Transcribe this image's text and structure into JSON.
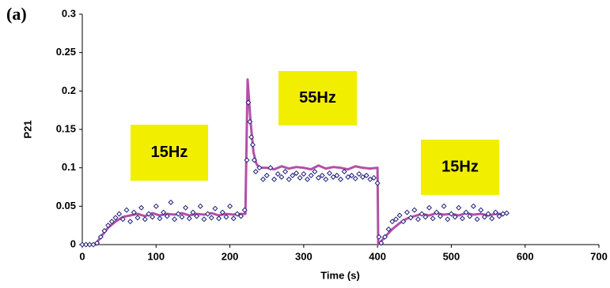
{
  "chart_data": {
    "type": "scatter",
    "label": "(a)",
    "xlabel": "Time (s)",
    "ylabel": "P21",
    "xlim": [
      0,
      700
    ],
    "xticks": [
      0,
      100,
      200,
      300,
      400,
      500,
      600,
      700
    ],
    "ylim": [
      0,
      0.3
    ],
    "yticks": [
      0,
      0.05,
      0.1,
      0.15,
      0.2,
      0.25,
      0.3
    ],
    "annotations": [
      "15Hz",
      "55Hz",
      "15Hz"
    ],
    "annotation_color": "#f2ee00",
    "series": [
      {
        "color": "#b44fa8",
        "mode": "line",
        "x": [
          0,
          18,
          25,
          35,
          45,
          55,
          65,
          75,
          85,
          95,
          105,
          115,
          125,
          135,
          145,
          155,
          165,
          175,
          185,
          195,
          205,
          215,
          221,
          224,
          228,
          232,
          236,
          240,
          250,
          260,
          270,
          280,
          290,
          300,
          310,
          320,
          330,
          340,
          350,
          360,
          370,
          380,
          390,
          400,
          401,
          403,
          410,
          420,
          430,
          440,
          450,
          460,
          470,
          480,
          490,
          500,
          510,
          520,
          530,
          540,
          550,
          560,
          570
        ],
        "values": [
          0,
          0,
          0.01,
          0.022,
          0.03,
          0.036,
          0.038,
          0.04,
          0.037,
          0.041,
          0.038,
          0.04,
          0.039,
          0.041,
          0.038,
          0.04,
          0.039,
          0.041,
          0.038,
          0.04,
          0.039,
          0.04,
          0.04,
          0.215,
          0.16,
          0.12,
          0.105,
          0.1,
          0.1,
          0.098,
          0.102,
          0.099,
          0.101,
          0.1,
          0.098,
          0.103,
          0.099,
          0.101,
          0.1,
          0.098,
          0.102,
          0.1,
          0.099,
          0.1,
          0,
          0.002,
          0.01,
          0.02,
          0.028,
          0.034,
          0.037,
          0.04,
          0.038,
          0.041,
          0.039,
          0.04,
          0.038,
          0.041,
          0.039,
          0.04,
          0.038,
          0.04,
          0.04
        ]
      },
      {
        "color": "#1f1f7a",
        "mode": "marker",
        "x": [
          0,
          5,
          10,
          15,
          20,
          25,
          30,
          35,
          40,
          45,
          50,
          55,
          60,
          65,
          70,
          75,
          80,
          85,
          90,
          95,
          100,
          105,
          110,
          115,
          120,
          125,
          130,
          135,
          140,
          145,
          150,
          155,
          160,
          165,
          170,
          175,
          180,
          185,
          190,
          195,
          200,
          205,
          210,
          215,
          220,
          223,
          225,
          227,
          229,
          231,
          233,
          235,
          240,
          245,
          250,
          255,
          260,
          265,
          270,
          275,
          280,
          285,
          290,
          295,
          300,
          305,
          310,
          315,
          320,
          325,
          330,
          335,
          340,
          345,
          350,
          355,
          360,
          365,
          370,
          375,
          380,
          385,
          390,
          395,
          400,
          402,
          405,
          410,
          415,
          420,
          425,
          430,
          435,
          440,
          445,
          450,
          455,
          460,
          465,
          470,
          475,
          480,
          485,
          490,
          495,
          500,
          505,
          510,
          515,
          520,
          525,
          530,
          535,
          540,
          545,
          550,
          555,
          560,
          565,
          570,
          575
        ],
        "values": [
          0,
          0,
          0,
          0,
          0.002,
          0.01,
          0.018,
          0.025,
          0.03,
          0.035,
          0.04,
          0.033,
          0.045,
          0.03,
          0.042,
          0.035,
          0.048,
          0.033,
          0.04,
          0.036,
          0.05,
          0.034,
          0.042,
          0.037,
          0.055,
          0.033,
          0.04,
          0.036,
          0.048,
          0.034,
          0.042,
          0.037,
          0.05,
          0.033,
          0.04,
          0.035,
          0.047,
          0.034,
          0.042,
          0.036,
          0.05,
          0.034,
          0.04,
          0.037,
          0.045,
          0.11,
          0.185,
          0.16,
          0.14,
          0.13,
          0.11,
          0.095,
          0.1,
          0.085,
          0.09,
          0.1,
          0.085,
          0.092,
          0.088,
          0.095,
          0.085,
          0.09,
          0.093,
          0.087,
          0.092,
          0.085,
          0.09,
          0.095,
          0.087,
          0.09,
          0.085,
          0.093,
          0.088,
          0.09,
          0.085,
          0.095,
          0.088,
          0.09,
          0.086,
          0.092,
          0.088,
          0.09,
          0.085,
          0.087,
          0.08,
          0.01,
          0.002,
          0.01,
          0.02,
          0.03,
          0.033,
          0.038,
          0.03,
          0.042,
          0.035,
          0.045,
          0.033,
          0.04,
          0.036,
          0.048,
          0.034,
          0.042,
          0.037,
          0.05,
          0.033,
          0.04,
          0.036,
          0.048,
          0.034,
          0.042,
          0.037,
          0.05,
          0.033,
          0.045,
          0.036,
          0.04,
          0.034,
          0.042,
          0.037,
          0.04,
          0.041
        ]
      }
    ]
  }
}
